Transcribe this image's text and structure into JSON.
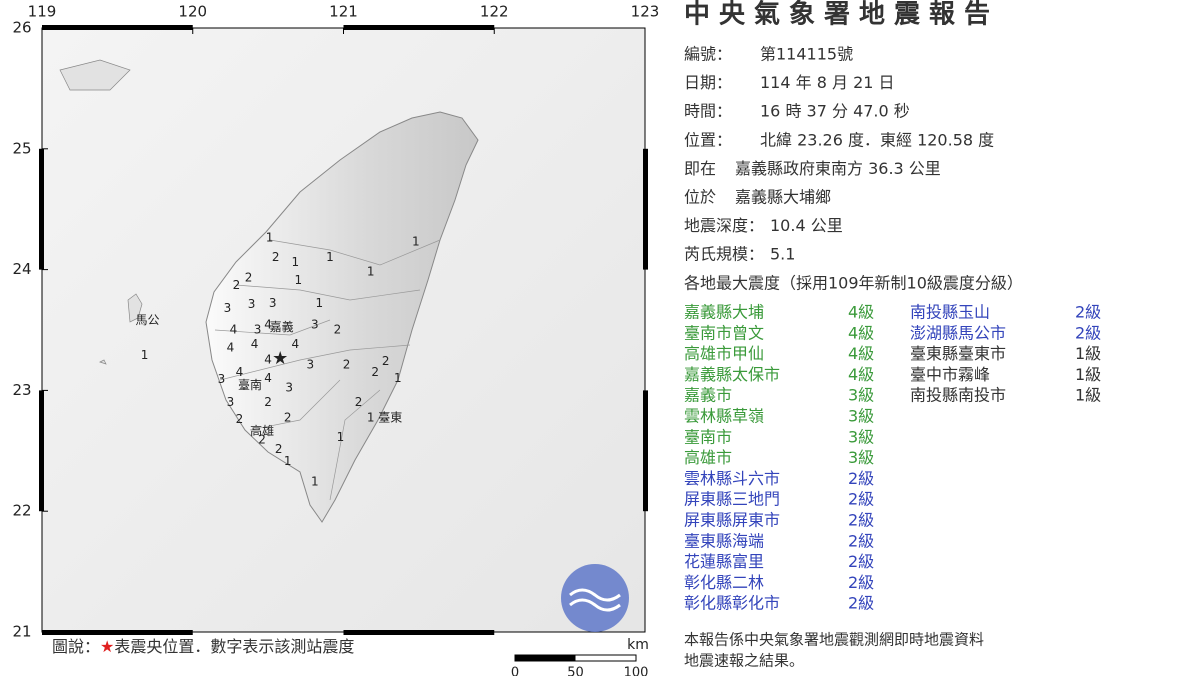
{
  "map": {
    "xticks": [
      119,
      120,
      121,
      122,
      123
    ],
    "yticks": [
      21,
      22,
      23,
      24,
      25,
      26
    ],
    "xlim": [
      119,
      123
    ],
    "ylim": [
      21,
      26
    ],
    "epicenter": {
      "lon": 120.58,
      "lat": 23.26,
      "color": "#e02020"
    },
    "intensity_colors": {
      "1": "#333333",
      "2": "#3344bb",
      "3": "#3a9a3a",
      "4": "#3a9a3a"
    },
    "places": [
      {
        "name": "馬公",
        "lon": 119.7,
        "lat": 23.58
      },
      {
        "name": "嘉義",
        "lon": 120.59,
        "lat": 23.52
      },
      {
        "name": "臺南",
        "lon": 120.38,
        "lat": 23.04
      },
      {
        "name": "高雄",
        "lon": 120.46,
        "lat": 22.66
      },
      {
        "name": "臺東",
        "lon": 121.31,
        "lat": 22.77
      }
    ],
    "stations": [
      {
        "lon": 120.55,
        "lat": 24.1,
        "intensity": "2"
      },
      {
        "lon": 120.68,
        "lat": 24.06,
        "intensity": "1"
      },
      {
        "lon": 120.51,
        "lat": 24.26,
        "intensity": "1"
      },
      {
        "lon": 120.37,
        "lat": 23.93,
        "intensity": "2"
      },
      {
        "lon": 120.29,
        "lat": 23.87,
        "intensity": "2"
      },
      {
        "lon": 120.7,
        "lat": 23.91,
        "intensity": "1"
      },
      {
        "lon": 120.91,
        "lat": 24.1,
        "intensity": "1"
      },
      {
        "lon": 121.18,
        "lat": 23.98,
        "intensity": "1"
      },
      {
        "lon": 121.48,
        "lat": 24.23,
        "intensity": "1"
      },
      {
        "lon": 120.84,
        "lat": 23.72,
        "intensity": "1"
      },
      {
        "lon": 120.23,
        "lat": 23.68,
        "intensity": "3"
      },
      {
        "lon": 120.39,
        "lat": 23.71,
        "intensity": "3"
      },
      {
        "lon": 120.53,
        "lat": 23.72,
        "intensity": "3"
      },
      {
        "lon": 120.27,
        "lat": 23.5,
        "intensity": "4"
      },
      {
        "lon": 120.43,
        "lat": 23.5,
        "intensity": "3"
      },
      {
        "lon": 120.81,
        "lat": 23.54,
        "intensity": "3"
      },
      {
        "lon": 120.96,
        "lat": 23.5,
        "intensity": "2"
      },
      {
        "lon": 120.25,
        "lat": 23.35,
        "intensity": "4"
      },
      {
        "lon": 120.41,
        "lat": 23.38,
        "intensity": "4"
      },
      {
        "lon": 120.5,
        "lat": 23.25,
        "intensity": "4"
      },
      {
        "lon": 120.68,
        "lat": 23.38,
        "intensity": "4"
      },
      {
        "lon": 120.78,
        "lat": 23.21,
        "intensity": "3"
      },
      {
        "lon": 120.19,
        "lat": 23.09,
        "intensity": "3"
      },
      {
        "lon": 120.31,
        "lat": 23.15,
        "intensity": "4"
      },
      {
        "lon": 120.5,
        "lat": 23.1,
        "intensity": "4"
      },
      {
        "lon": 120.64,
        "lat": 23.02,
        "intensity": "3"
      },
      {
        "lon": 120.25,
        "lat": 22.9,
        "intensity": "3"
      },
      {
        "lon": 120.5,
        "lat": 22.9,
        "intensity": "2"
      },
      {
        "lon": 120.63,
        "lat": 22.77,
        "intensity": "2"
      },
      {
        "lon": 120.31,
        "lat": 22.76,
        "intensity": "2"
      },
      {
        "lon": 120.46,
        "lat": 22.59,
        "intensity": "2"
      },
      {
        "lon": 120.57,
        "lat": 22.51,
        "intensity": "2"
      },
      {
        "lon": 120.63,
        "lat": 22.41,
        "intensity": "1"
      },
      {
        "lon": 120.81,
        "lat": 22.24,
        "intensity": "1"
      },
      {
        "lon": 121.02,
        "lat": 23.21,
        "intensity": "2"
      },
      {
        "lon": 121.21,
        "lat": 23.15,
        "intensity": "2"
      },
      {
        "lon": 121.28,
        "lat": 23.24,
        "intensity": "2"
      },
      {
        "lon": 121.36,
        "lat": 23.1,
        "intensity": "1"
      },
      {
        "lon": 121.1,
        "lat": 22.9,
        "intensity": "2"
      },
      {
        "lon": 121.18,
        "lat": 22.77,
        "intensity": "1"
      },
      {
        "lon": 120.98,
        "lat": 22.61,
        "intensity": "1"
      },
      {
        "lon": 119.68,
        "lat": 23.29,
        "intensity": "1"
      },
      {
        "lon": 120.5,
        "lat": 23.54,
        "intensity": "4"
      }
    ],
    "legend": {
      "prefix": "圖說：",
      "star": "★",
      "text": "表震央位置．數字表示該測站震度"
    },
    "scale": {
      "unit": "km",
      "ticks": [
        0,
        50,
        100
      ]
    }
  },
  "report": {
    "title": "中央氣象署地震報告",
    "fields": [
      {
        "label": "編號：",
        "value": "第114115號"
      },
      {
        "label": "日期：",
        "value": "114 年 8 月 21 日"
      },
      {
        "label": "時間：",
        "value": "16 時 37 分 47.0 秒"
      },
      {
        "label": "位置：",
        "value": "北緯 23.26 度．東經 120.58 度"
      },
      {
        "label": "即在",
        "value": "嘉義縣政府東南方 36.3 公里"
      },
      {
        "label": "位於",
        "value": "嘉義縣大埔鄉"
      },
      {
        "label": "地震深度：",
        "value": "10.4 公里"
      },
      {
        "label": "芮氏規模：",
        "value": "5.1"
      }
    ],
    "intensity_heading": "各地最大震度（採用109年新制10級震度分級）",
    "level_colors": {
      "4級": "#3a9a3a",
      "3級": "#3a9a3a",
      "2級": "#3344bb",
      "1級": "#333333"
    },
    "columns": [
      [
        {
          "name": "嘉義縣大埔",
          "level": "4級"
        },
        {
          "name": "臺南市曾文",
          "level": "4級"
        },
        {
          "name": "高雄市甲仙",
          "level": "4級"
        },
        {
          "name": "嘉義縣太保市",
          "level": "4級"
        },
        {
          "name": "嘉義市",
          "level": "3級"
        },
        {
          "name": "雲林縣草嶺",
          "level": "3級"
        },
        {
          "name": "臺南市",
          "level": "3級"
        },
        {
          "name": "高雄市",
          "level": "3級"
        },
        {
          "name": "雲林縣斗六市",
          "level": "2級"
        },
        {
          "name": "屏東縣三地門",
          "level": "2級"
        },
        {
          "name": "屏東縣屏東市",
          "level": "2級"
        },
        {
          "name": "臺東縣海端",
          "level": "2級"
        },
        {
          "name": "花蓮縣富里",
          "level": "2級"
        },
        {
          "name": "彰化縣二林",
          "level": "2級"
        },
        {
          "name": "彰化縣彰化市",
          "level": "2級"
        }
      ],
      [
        {
          "name": "南投縣玉山",
          "level": "2級"
        },
        {
          "name": "澎湖縣馬公市",
          "level": "2級"
        },
        {
          "name": "臺東縣臺東市",
          "level": "1級"
        },
        {
          "name": "臺中市霧峰",
          "level": "1級"
        },
        {
          "name": "南投縣南投市",
          "level": "1級"
        }
      ]
    ],
    "footer": [
      "本報告係中央氣象署地震觀測網即時地震資料",
      "地震速報之結果。"
    ]
  }
}
